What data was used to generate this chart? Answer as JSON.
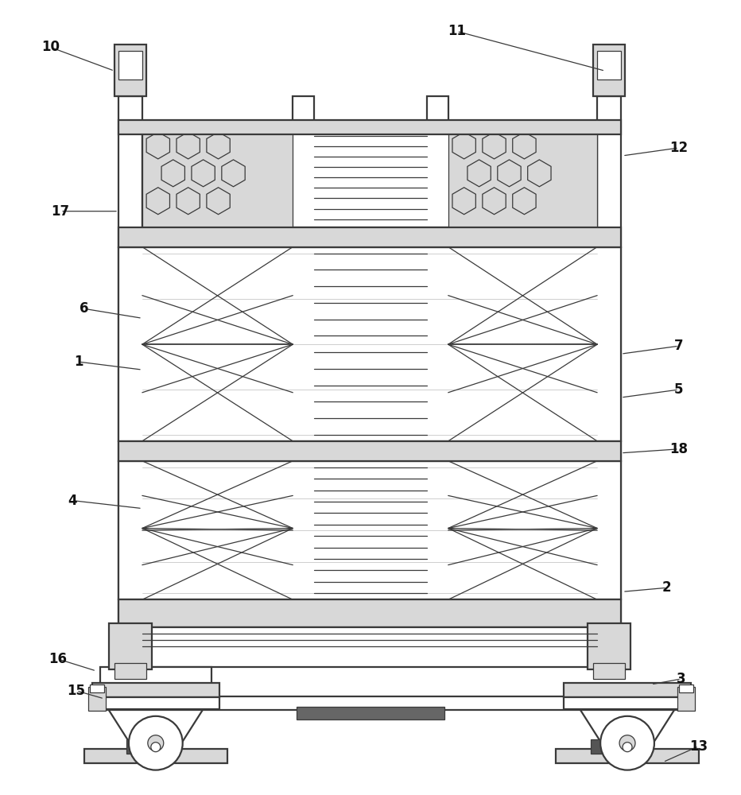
{
  "bg_color": "#ffffff",
  "line_color": "#3a3a3a",
  "fill_light": "#d8d8d8",
  "fill_white": "#ffffff",
  "lw_main": 1.6,
  "lw_thin": 0.9,
  "figsize": [
    9.32,
    10.0
  ],
  "dpi": 100
}
